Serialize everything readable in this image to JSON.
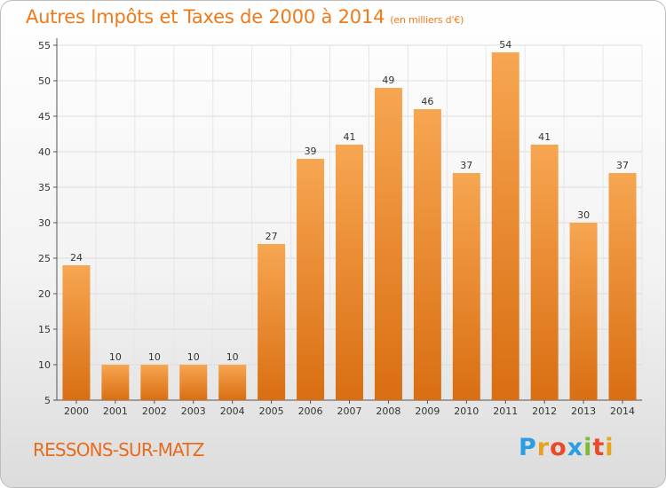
{
  "title": "Autres Impôts et Taxes de 2000 à 2014",
  "unit_label": "(en milliers d'€)",
  "town": "RESSONS-SUR-MATZ",
  "logo": "Proxiti",
  "chart_data": {
    "type": "bar",
    "title": "Autres Impôts et Taxes de 2000 à 2014",
    "subtitle": "(en milliers d'€)",
    "categories": [
      "2000",
      "2001",
      "2002",
      "2003",
      "2004",
      "2005",
      "2006",
      "2007",
      "2008",
      "2009",
      "2010",
      "2011",
      "2012",
      "2013",
      "2014"
    ],
    "values": [
      24,
      10,
      10,
      10,
      10,
      27,
      39,
      41,
      49,
      46,
      37,
      54,
      41,
      30,
      37
    ],
    "ylim": [
      5,
      55
    ],
    "yticks": [
      5,
      10,
      15,
      20,
      25,
      30,
      35,
      40,
      45,
      50,
      55
    ],
    "grid": true,
    "bar_color_top": "#f7a651",
    "bar_color_bottom": "#d96e12",
    "title_color": "#ef7a1a"
  }
}
